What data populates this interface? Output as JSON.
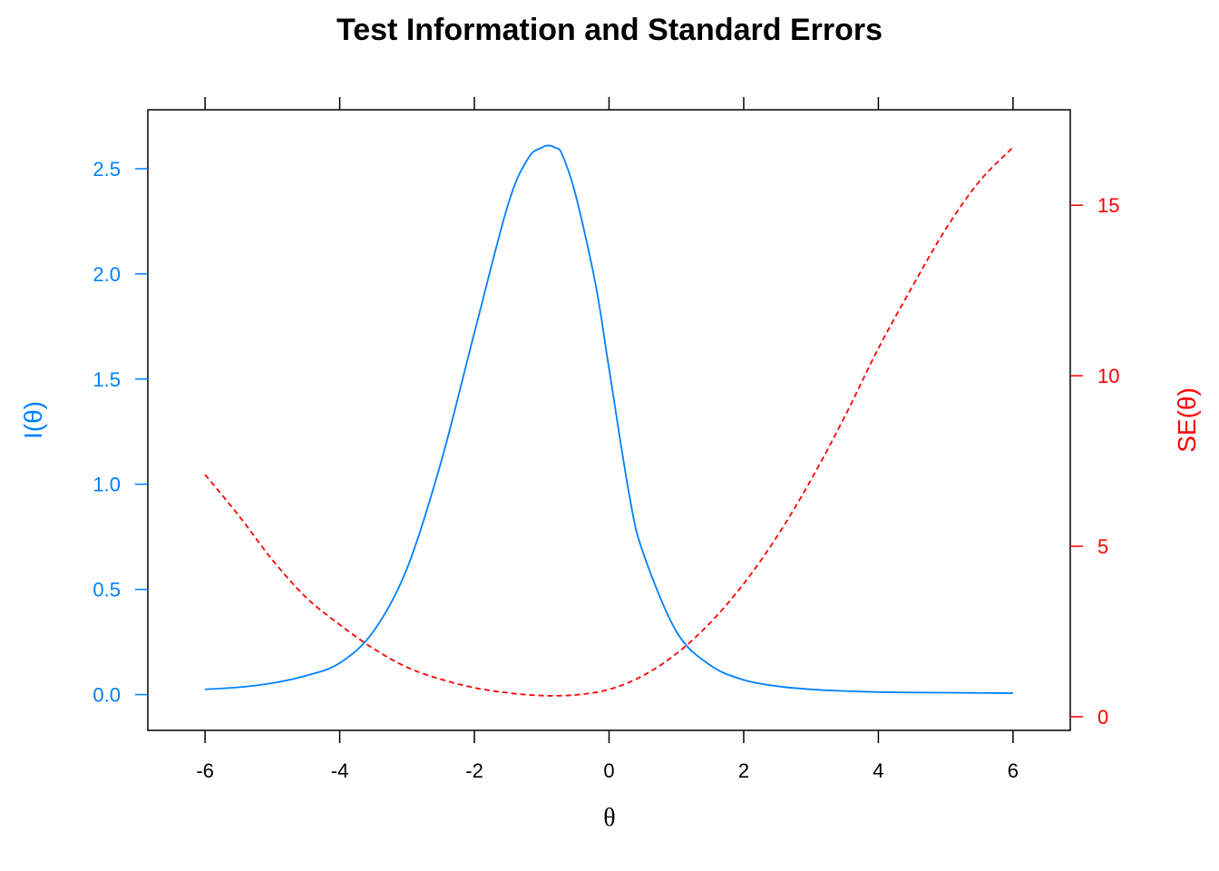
{
  "chart_data": {
    "type": "line",
    "title": "Test Information and Standard Errors",
    "xlabel": "θ",
    "ylabel_left": "I(θ)",
    "ylabel_right": "SE(θ)",
    "xlim": [
      -6.85,
      6.85
    ],
    "ylim_left": [
      -0.17,
      2.78
    ],
    "ylim_right": [
      -0.4,
      17.8
    ],
    "x_ticks": [
      -6,
      -4,
      -2,
      0,
      2,
      4,
      6
    ],
    "y_left_ticks": [
      0.0,
      0.5,
      1.0,
      1.5,
      2.0,
      2.5
    ],
    "y_left_tick_labels": [
      "0.0",
      "0.5",
      "1.0",
      "1.5",
      "2.0",
      "2.5"
    ],
    "y_right_ticks": [
      0,
      5,
      10,
      15
    ],
    "y_right_tick_labels": [
      "0",
      "5",
      "10",
      "15"
    ],
    "grid": false,
    "series": [
      {
        "name": "I(θ)",
        "axis": "left",
        "color": "#0080ff",
        "dash": "solid",
        "x": [
          -6,
          -5.5,
          -5,
          -4.5,
          -4,
          -3.5,
          -3,
          -2.5,
          -2,
          -1.5,
          -1.2,
          -1,
          -0.9,
          -0.8,
          -0.7,
          -0.5,
          -0.2,
          0,
          0.3,
          0.5,
          1,
          1.5,
          2,
          2.5,
          3,
          3.5,
          4,
          4.5,
          5,
          5.5,
          6
        ],
        "y": [
          0.025,
          0.035,
          0.055,
          0.09,
          0.15,
          0.3,
          0.6,
          1.1,
          1.72,
          2.33,
          2.55,
          2.6,
          2.61,
          2.6,
          2.57,
          2.38,
          1.95,
          1.55,
          0.95,
          0.68,
          0.3,
          0.14,
          0.07,
          0.04,
          0.025,
          0.017,
          0.012,
          0.01,
          0.009,
          0.008,
          0.007
        ]
      },
      {
        "name": "SE(θ)",
        "axis": "right",
        "color": "#ff0000",
        "dash": "dashed",
        "x": [
          -6,
          -5.5,
          -5,
          -4.5,
          -4,
          -3.5,
          -3,
          -2.5,
          -2,
          -1.5,
          -1,
          -0.5,
          0,
          0.5,
          1,
          1.5,
          2,
          2.5,
          3,
          3.5,
          4,
          4.5,
          5,
          5.5,
          6
        ],
        "y": [
          7.1,
          5.9,
          4.6,
          3.5,
          2.7,
          2.0,
          1.45,
          1.1,
          0.85,
          0.7,
          0.62,
          0.64,
          0.8,
          1.2,
          1.85,
          2.75,
          3.9,
          5.3,
          6.95,
          8.8,
          10.8,
          12.6,
          14.3,
          15.7,
          16.7
        ]
      }
    ]
  }
}
